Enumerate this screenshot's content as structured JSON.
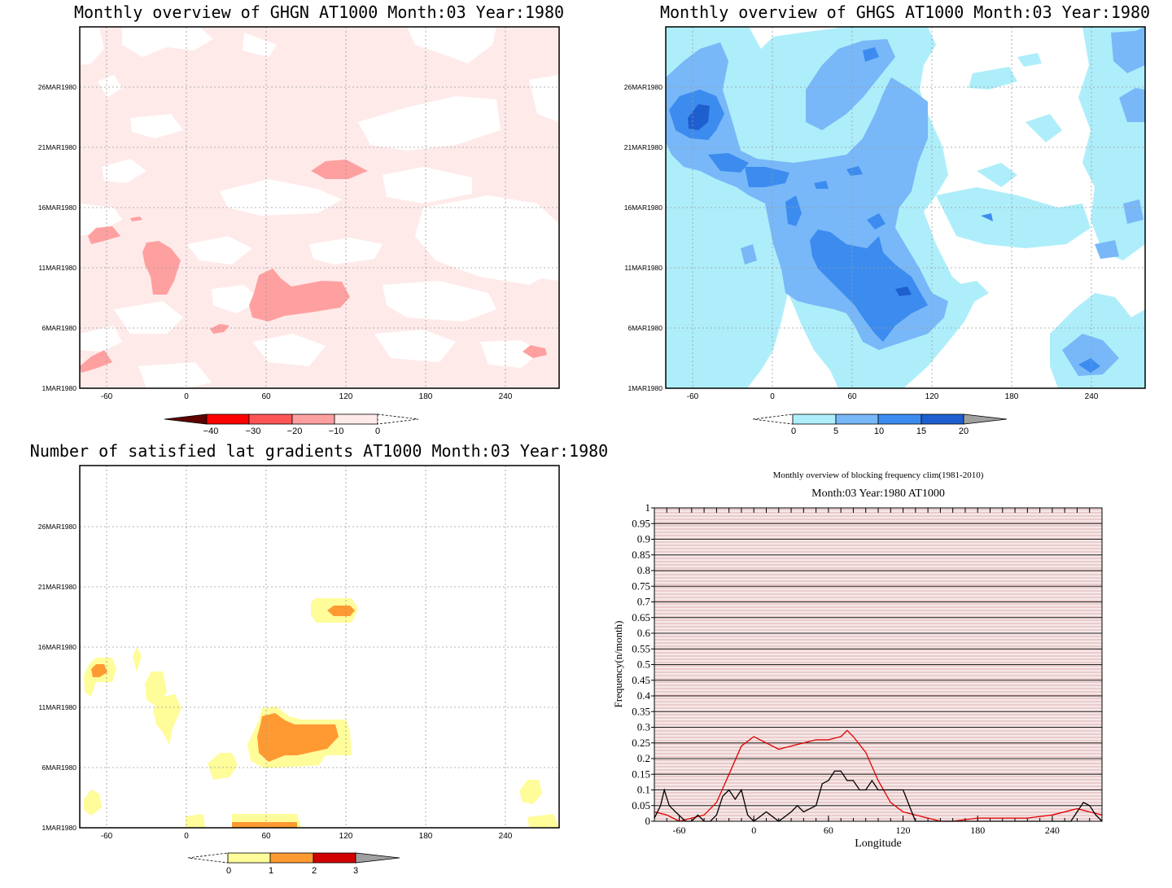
{
  "panels": {
    "ghgn": {
      "title": "Monthly overview of GHGN AT1000 Month:03 Year:1980",
      "colorbar": {
        "labels": [
          "−40",
          "−30",
          "−20",
          "−10",
          "0"
        ],
        "colors": [
          "#ff0000",
          "#ff5555",
          "#ffa0a0",
          "#ffeaea"
        ]
      },
      "fields": [
        {
          "value": "0 to -10",
          "color": "#ffeaea"
        },
        {
          "value": "-10 to -20",
          "color": "#ffa0a0"
        }
      ]
    },
    "ghgs": {
      "title": "Monthly overview of GHGS AT1000 Month:03 Year:1980",
      "colorbar": {
        "labels": [
          "0",
          "5",
          "10",
          "15",
          "20"
        ],
        "colors": [
          "#aeeefa",
          "#78b8f8",
          "#3c8cf0",
          "#1e5fd0"
        ]
      }
    },
    "lat": {
      "title": "Number of satisfied lat gradients AT1000 Month:03 Year:1980",
      "colorbar": {
        "labels": [
          "0",
          "1",
          "2",
          "3"
        ],
        "colors": [
          "#fffc9a",
          "#ff9a32",
          "#d00000"
        ]
      }
    },
    "freq": {
      "title": "Monthly overview of blocking frequency clim(1981-2010)",
      "subtitle": "Month:03 Year:1980  AT1000"
    }
  },
  "map_axes": {
    "x_ticks": [
      "-60",
      "0",
      "60",
      "120",
      "180",
      "240"
    ],
    "x_values": [
      -60,
      0,
      60,
      120,
      180,
      240
    ],
    "xlim": [
      -80,
      280
    ],
    "y_ticks": [
      "1MAR1980",
      "6MAR1980",
      "11MAR1980",
      "16MAR1980",
      "21MAR1980",
      "26MAR1980"
    ],
    "y_values": [
      1,
      6,
      11,
      16,
      21,
      26
    ],
    "ylim": [
      1,
      31
    ]
  },
  "chart_data": [
    {
      "type": "line",
      "title": "Monthly overview of blocking frequency clim(1981-2010)",
      "subtitle": "Month:03 Year:1980  AT1000",
      "xlabel": "Longitude",
      "ylabel": "Frequency(n/month)",
      "xlim": [
        -80,
        280
      ],
      "ylim": [
        0,
        1
      ],
      "x_ticks": [
        "-60",
        "0",
        "60",
        "120",
        "180",
        "240"
      ],
      "x_tick_values": [
        -60,
        0,
        60,
        120,
        180,
        240
      ],
      "y_ticks": [
        "0",
        "0.05",
        "0.1",
        "0.15",
        "0.2",
        "0.25",
        "0.3",
        "0.35",
        "0.4",
        "0.45",
        "0.5",
        "0.55",
        "0.6",
        "0.65",
        "0.7",
        "0.75",
        "0.8",
        "0.85",
        "0.9",
        "0.95",
        "1"
      ],
      "series": [
        {
          "color": "#e00000",
          "x": [
            -80,
            -70,
            -60,
            -50,
            -40,
            -30,
            -20,
            -10,
            0,
            10,
            20,
            30,
            40,
            50,
            60,
            70,
            75,
            80,
            90,
            100,
            110,
            120,
            130,
            140,
            150,
            160,
            180,
            200,
            220,
            240,
            260,
            270,
            280
          ],
          "y": [
            0.03,
            0.02,
            0.0,
            0.01,
            0.02,
            0.06,
            0.15,
            0.24,
            0.27,
            0.25,
            0.23,
            0.24,
            0.25,
            0.26,
            0.26,
            0.27,
            0.29,
            0.27,
            0.22,
            0.13,
            0.06,
            0.03,
            0.02,
            0.01,
            0.0,
            0.0,
            0.01,
            0.01,
            0.01,
            0.02,
            0.04,
            0.03,
            0.02
          ]
        },
        {
          "color": "#000000",
          "x": [
            -80,
            -75,
            -72,
            -68,
            -63,
            -55,
            -50,
            -45,
            -40,
            -35,
            -30,
            -25,
            -20,
            -15,
            -10,
            -5,
            0,
            10,
            20,
            30,
            35,
            40,
            50,
            55,
            60,
            65,
            70,
            75,
            80,
            85,
            90,
            95,
            100,
            110,
            120,
            125,
            130,
            140,
            180,
            240,
            255,
            260,
            265,
            270,
            275,
            280
          ],
          "y": [
            0.01,
            0.05,
            0.1,
            0.05,
            0.03,
            0.0,
            0.0,
            0.02,
            0.0,
            0.0,
            0.02,
            0.08,
            0.1,
            0.07,
            0.1,
            0.02,
            0.0,
            0.03,
            0.0,
            0.03,
            0.05,
            0.03,
            0.05,
            0.12,
            0.13,
            0.16,
            0.16,
            0.13,
            0.13,
            0.1,
            0.1,
            0.13,
            0.1,
            0.1,
            0.1,
            0.05,
            0.0,
            0.0,
            0.0,
            0.0,
            0.0,
            0.03,
            0.06,
            0.05,
            0.02,
            0.0
          ]
        }
      ]
    }
  ]
}
